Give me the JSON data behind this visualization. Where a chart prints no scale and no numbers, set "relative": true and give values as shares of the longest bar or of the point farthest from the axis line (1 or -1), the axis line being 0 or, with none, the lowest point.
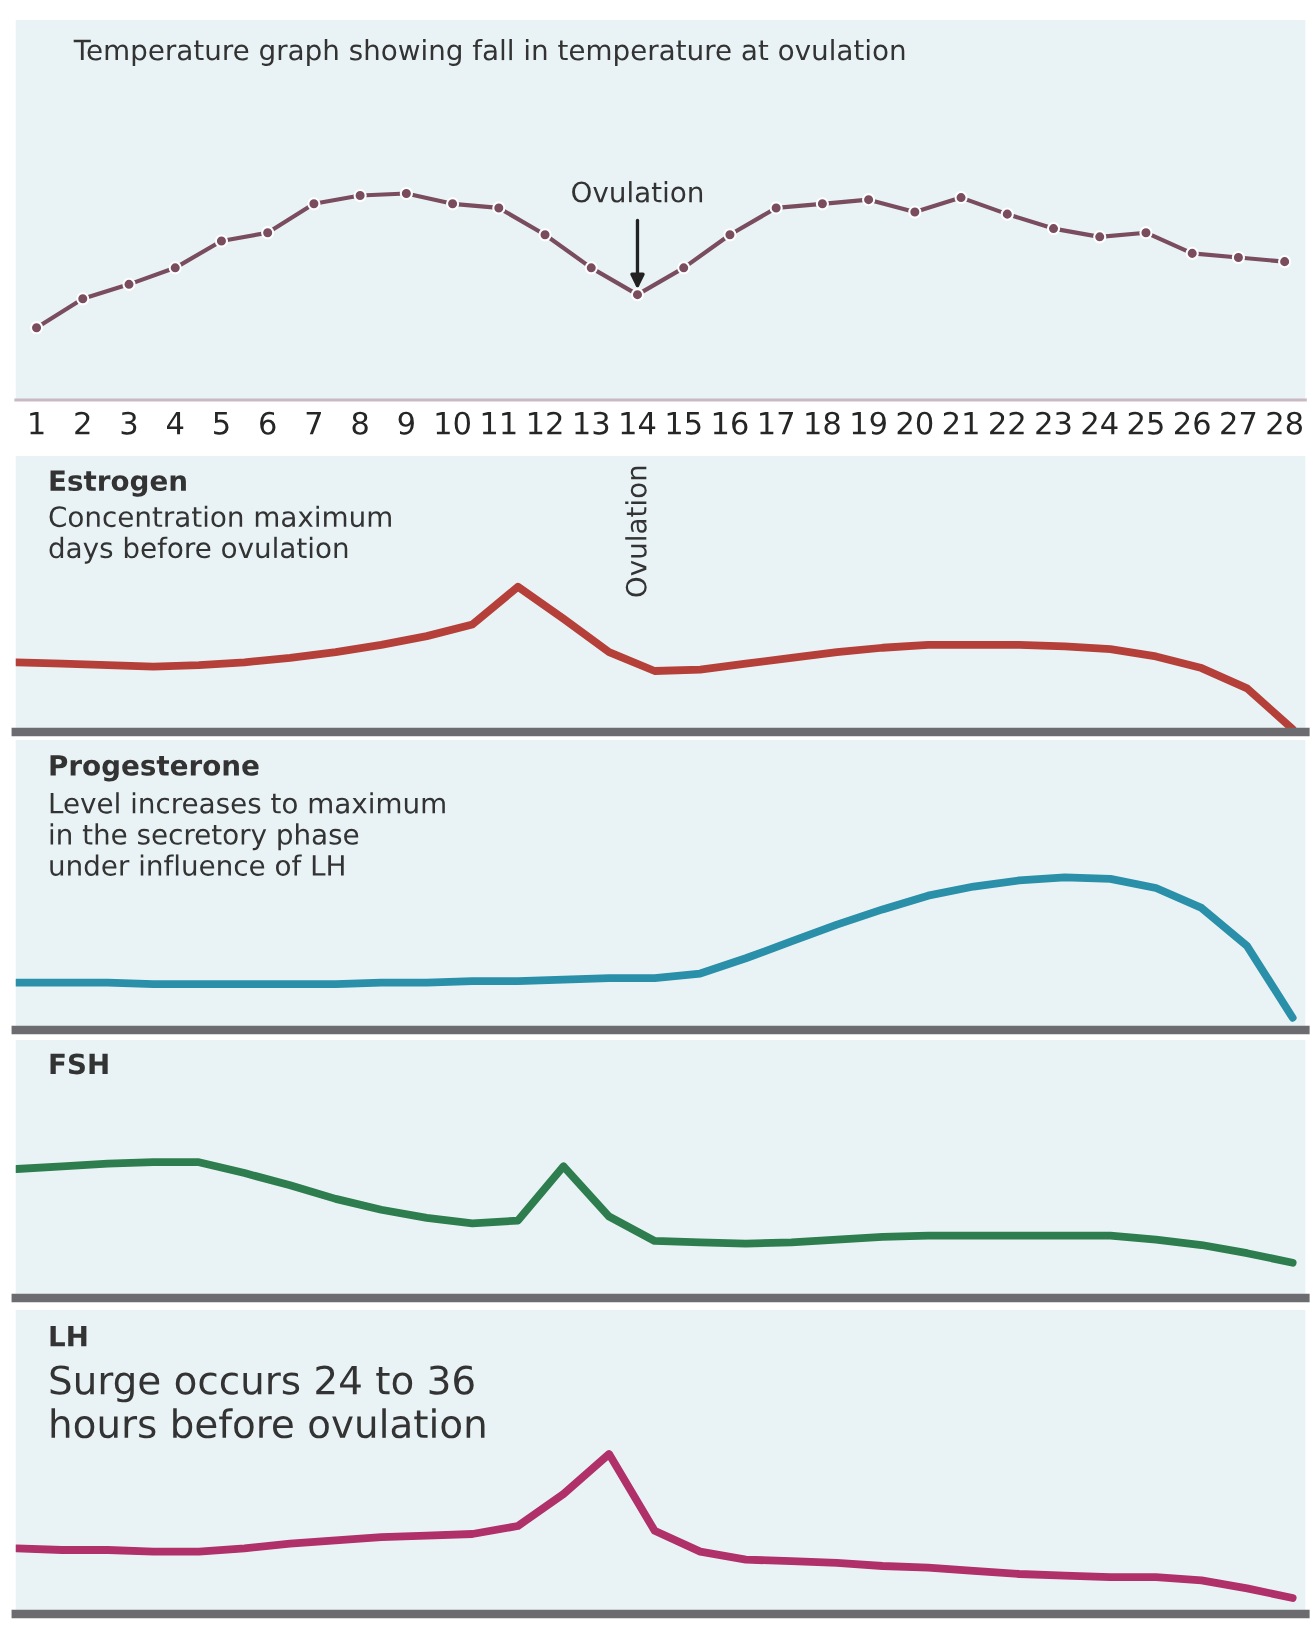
{
  "chart_data": [
    {
      "type": "line",
      "subtitle": "Temperature graph showing fall in temperature at ovulation",
      "relative": true,
      "marker": "circle",
      "tick_labels": "x",
      "xlim": [
        0.55,
        28.45
      ],
      "xticks": [
        1,
        2,
        3,
        4,
        5,
        6,
        7,
        8,
        9,
        10,
        11,
        12,
        13,
        14,
        15,
        16,
        17,
        18,
        19,
        20,
        21,
        22,
        23,
        24,
        25,
        26,
        27,
        28
      ],
      "series": [
        {
          "color": "#7a4d5e",
          "x": [
            1,
            2,
            3,
            4,
            5,
            6,
            7,
            8,
            9,
            10,
            11,
            12,
            13,
            14,
            15,
            16,
            17,
            18,
            19,
            20,
            21,
            22,
            23,
            24,
            25,
            26,
            27,
            28
          ],
          "values": [
            0.35,
            0.49,
            0.56,
            0.64,
            0.77,
            0.81,
            0.95,
            0.99,
            1,
            0.95,
            0.93,
            0.8,
            0.64,
            0.51,
            0.64,
            0.8,
            0.93,
            0.95,
            0.97,
            0.91,
            0.98,
            0.9,
            0.83,
            0.79,
            0.81,
            0.71,
            0.69,
            0.67
          ]
        }
      ],
      "annotations": [
        {
          "text": "Ovulation",
          "x": 14,
          "y": 0.51
        }
      ]
    },
    {
      "type": "line",
      "title": "Estrogen",
      "subtitle": "Concentration maximum\ndays before ovulation",
      "relative": true,
      "tick_labels": false,
      "categories": [
        null,
        null,
        null,
        null,
        null,
        null,
        null,
        null,
        null,
        null,
        null,
        null,
        null,
        null,
        null,
        null,
        null,
        null,
        null,
        null,
        null,
        null,
        null,
        null,
        null,
        null,
        null,
        null,
        null
      ],
      "series": [
        {
          "color": "#b5403a",
          "values": [
            0.48,
            0.47,
            0.46,
            0.45,
            0.46,
            0.48,
            0.51,
            0.55,
            0.6,
            0.66,
            0.74,
            1,
            0.78,
            0.55,
            0.42,
            0.43,
            0.47,
            0.51,
            0.55,
            0.58,
            0.6,
            0.6,
            0.6,
            0.59,
            0.57,
            0.52,
            0.44,
            0.3,
            0.02
          ]
        }
      ],
      "annotations": [
        "Ovulation"
      ]
    },
    {
      "type": "line",
      "title": "Progesterone",
      "subtitle": "Level increases to maximum\nin the secretory phase\nunder influence of LH",
      "relative": true,
      "tick_labels": false,
      "categories": [
        null,
        null,
        null,
        null,
        null,
        null,
        null,
        null,
        null,
        null,
        null,
        null,
        null,
        null,
        null,
        null,
        null,
        null,
        null,
        null,
        null,
        null,
        null,
        null,
        null,
        null,
        null,
        null,
        null
      ],
      "series": [
        {
          "color": "#2a8fa8",
          "values": [
            0.31,
            0.31,
            0.31,
            0.3,
            0.3,
            0.3,
            0.3,
            0.3,
            0.31,
            0.31,
            0.32,
            0.32,
            0.33,
            0.34,
            0.34,
            0.37,
            0.47,
            0.58,
            0.69,
            0.79,
            0.88,
            0.94,
            0.98,
            1,
            0.99,
            0.93,
            0.8,
            0.55,
            0.08
          ]
        }
      ]
    },
    {
      "type": "line",
      "title": "FSH",
      "relative": true,
      "tick_labels": false,
      "categories": [
        null,
        null,
        null,
        null,
        null,
        null,
        null,
        null,
        null,
        null,
        null,
        null,
        null,
        null,
        null,
        null,
        null,
        null,
        null,
        null,
        null,
        null,
        null,
        null,
        null,
        null,
        null,
        null,
        null
      ],
      "series": [
        {
          "color": "#2e7d4f",
          "values": [
            0.95,
            0.97,
            0.99,
            1,
            1,
            0.92,
            0.83,
            0.73,
            0.65,
            0.59,
            0.55,
            0.57,
            0.97,
            0.6,
            0.42,
            0.41,
            0.4,
            0.41,
            0.43,
            0.45,
            0.46,
            0.46,
            0.46,
            0.46,
            0.46,
            0.43,
            0.39,
            0.33,
            0.26
          ]
        }
      ]
    },
    {
      "type": "line",
      "title": "LH",
      "subtitle": "Surge occurs 24 to 36\nhours before ovulation",
      "relative": true,
      "tick_labels": false,
      "categories": [
        null,
        null,
        null,
        null,
        null,
        null,
        null,
        null,
        null,
        null,
        null,
        null,
        null,
        null,
        null,
        null,
        null,
        null,
        null,
        null,
        null,
        null,
        null,
        null,
        null,
        null,
        null,
        null,
        null
      ],
      "series": [
        {
          "color": "#b0306a",
          "values": [
            0.41,
            0.4,
            0.4,
            0.39,
            0.39,
            0.41,
            0.44,
            0.46,
            0.48,
            0.49,
            0.5,
            0.55,
            0.75,
            1,
            0.52,
            0.39,
            0.34,
            0.33,
            0.32,
            0.3,
            0.29,
            0.27,
            0.25,
            0.24,
            0.23,
            0.23,
            0.21,
            0.16,
            0.1
          ]
        }
      ]
    }
  ]
}
